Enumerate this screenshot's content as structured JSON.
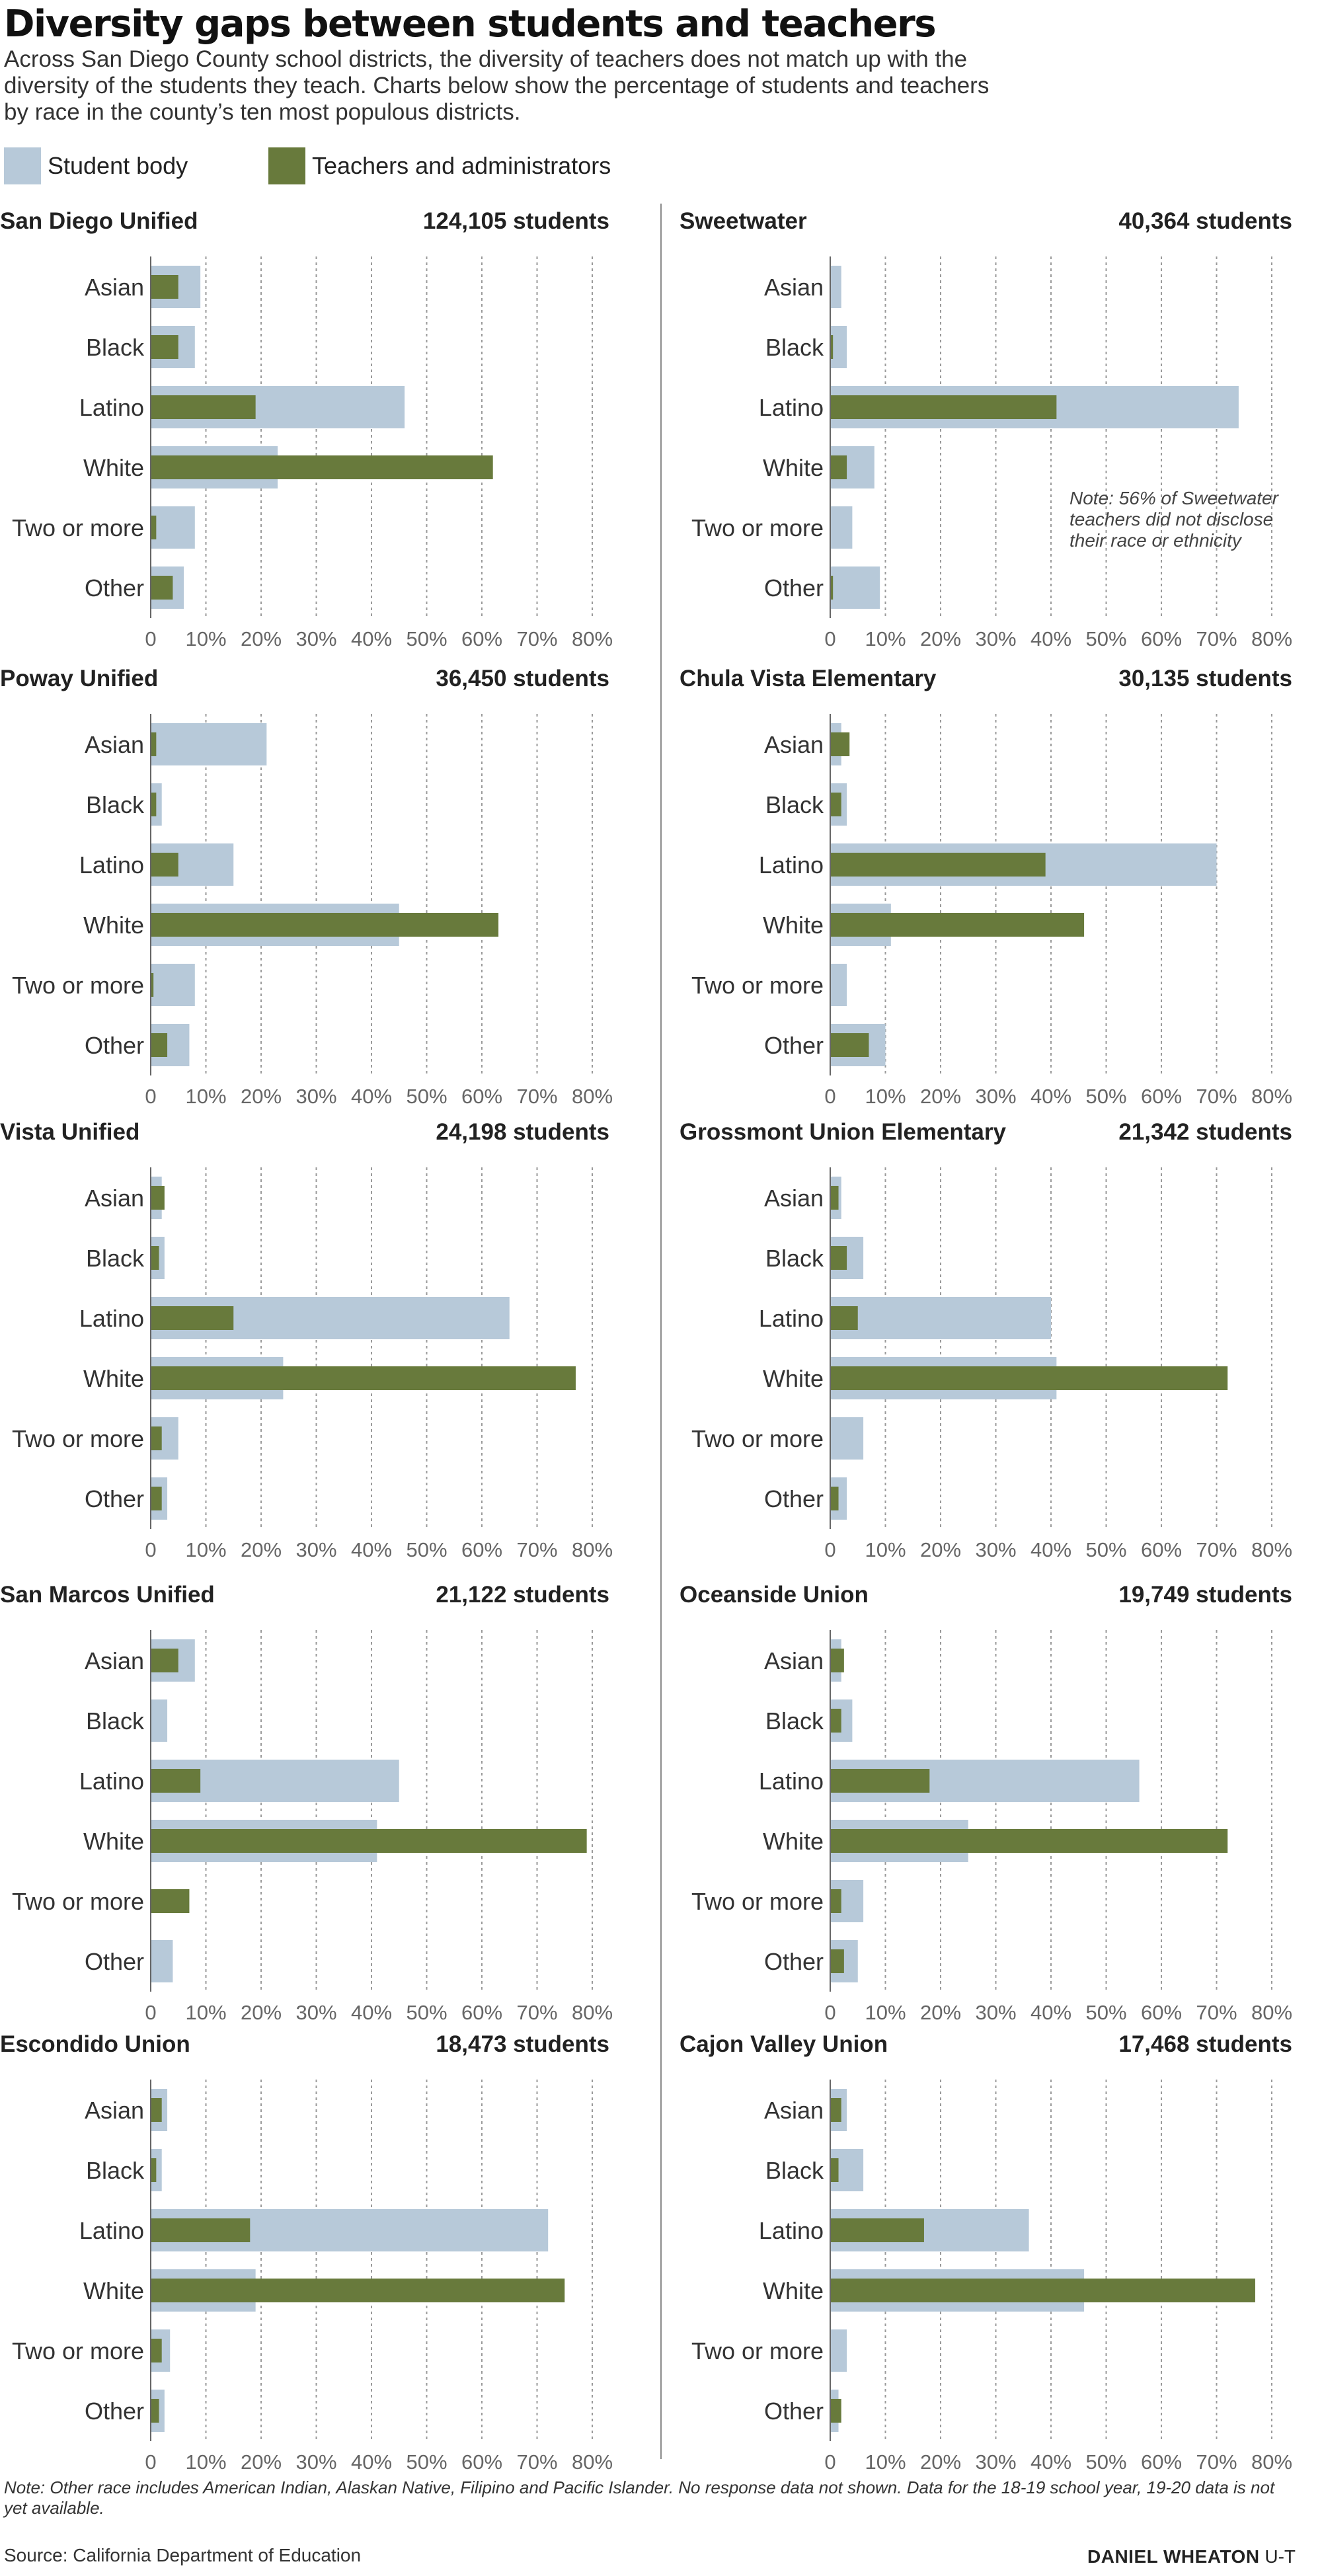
{
  "title": "Diversity gaps between students and teachers",
  "subtitle": "Across San Diego County school districts, the diversity of teachers does not match up with the diversity of the students they teach. Charts below show the percentage of students and teachers by race in the county’s ten most populous districts.",
  "legend": [
    {
      "label": "Student body",
      "color": "#b7c9d9"
    },
    {
      "label": "Teachers and administrators",
      "color": "#687a3c"
    }
  ],
  "footnote": "Note: Other race includes American Indian, Alaskan Native, Filipino and Pacific Islander. No response data not shown. Data for the 18-19 school year, 19-20 data is not yet available.",
  "source": "Source: California Department of Education",
  "credit": {
    "name": "DANIEL WHEATON",
    "org": "U-T"
  },
  "chart_data": [
    {
      "type": "bar",
      "title": "San Diego Unified",
      "enrollment": "124,105 students",
      "categories": [
        "Asian",
        "Black",
        "Latino",
        "White",
        "Two or more",
        "Other"
      ],
      "series": [
        {
          "name": "Student body",
          "values": [
            9,
            8,
            46,
            23,
            8,
            6
          ]
        },
        {
          "name": "Teachers and administrators",
          "values": [
            5,
            5,
            19,
            62,
            1,
            4
          ]
        }
      ],
      "xlim": [
        0,
        80
      ],
      "ticks": [
        "0",
        "10%",
        "20%",
        "30%",
        "40%",
        "50%",
        "60%",
        "70%",
        "80%"
      ]
    },
    {
      "type": "bar",
      "title": "Sweetwater",
      "enrollment": "40,364 students",
      "categories": [
        "Asian",
        "Black",
        "Latino",
        "White",
        "Two or more",
        "Other"
      ],
      "series": [
        {
          "name": "Student body",
          "values": [
            2,
            3,
            74,
            8,
            4,
            9
          ]
        },
        {
          "name": "Teachers and administrators",
          "values": [
            0,
            0.5,
            41,
            3,
            0,
            0.5
          ]
        }
      ],
      "xlim": [
        0,
        80
      ],
      "ticks": [
        "0",
        "10%",
        "20%",
        "30%",
        "40%",
        "50%",
        "60%",
        "70%",
        "80%"
      ],
      "note": "Note: 56% of Sweetwater teachers did not disclose their race or ethnicity"
    },
    {
      "type": "bar",
      "title": "Poway Unified",
      "enrollment": "36,450 students",
      "categories": [
        "Asian",
        "Black",
        "Latino",
        "White",
        "Two or more",
        "Other"
      ],
      "series": [
        {
          "name": "Student body",
          "values": [
            21,
            2,
            15,
            45,
            8,
            7
          ]
        },
        {
          "name": "Teachers and administrators",
          "values": [
            1,
            1,
            5,
            63,
            0.5,
            3
          ]
        }
      ],
      "xlim": [
        0,
        80
      ],
      "ticks": [
        "0",
        "10%",
        "20%",
        "30%",
        "40%",
        "50%",
        "60%",
        "70%",
        "80%"
      ]
    },
    {
      "type": "bar",
      "title": "Chula Vista Elementary",
      "enrollment": "30,135 students",
      "categories": [
        "Asian",
        "Black",
        "Latino",
        "White",
        "Two or more",
        "Other"
      ],
      "series": [
        {
          "name": "Student body",
          "values": [
            2,
            3,
            70,
            11,
            3,
            10
          ]
        },
        {
          "name": "Teachers and administrators",
          "values": [
            3.5,
            2,
            39,
            46,
            0,
            7
          ]
        }
      ],
      "xlim": [
        0,
        80
      ],
      "ticks": [
        "0",
        "10%",
        "20%",
        "30%",
        "40%",
        "50%",
        "60%",
        "70%",
        "80%"
      ]
    },
    {
      "type": "bar",
      "title": "Vista Unified",
      "enrollment": "24,198 students",
      "categories": [
        "Asian",
        "Black",
        "Latino",
        "White",
        "Two or more",
        "Other"
      ],
      "series": [
        {
          "name": "Student body",
          "values": [
            2,
            2.5,
            65,
            24,
            5,
            3
          ]
        },
        {
          "name": "Teachers and administrators",
          "values": [
            2.5,
            1.5,
            15,
            77,
            2,
            2
          ]
        }
      ],
      "xlim": [
        0,
        80
      ],
      "ticks": [
        "0",
        "10%",
        "20%",
        "30%",
        "40%",
        "50%",
        "60%",
        "70%",
        "80%"
      ]
    },
    {
      "type": "bar",
      "title": "Grossmont Union Elementary",
      "enrollment": "21,342 students",
      "categories": [
        "Asian",
        "Black",
        "Latino",
        "White",
        "Two or more",
        "Other"
      ],
      "series": [
        {
          "name": "Student body",
          "values": [
            2,
            6,
            40,
            41,
            6,
            3
          ]
        },
        {
          "name": "Teachers and administrators",
          "values": [
            1.5,
            3,
            5,
            72,
            0,
            1.5
          ]
        }
      ],
      "xlim": [
        0,
        80
      ],
      "ticks": [
        "0",
        "10%",
        "20%",
        "30%",
        "40%",
        "50%",
        "60%",
        "70%",
        "80%"
      ]
    },
    {
      "type": "bar",
      "title": "San Marcos Unified",
      "enrollment": "21,122 students",
      "categories": [
        "Asian",
        "Black",
        "Latino",
        "White",
        "Two or more",
        "Other"
      ],
      "series": [
        {
          "name": "Student body",
          "values": [
            8,
            3,
            45,
            41,
            0,
            4
          ]
        },
        {
          "name": "Teachers and administrators",
          "values": [
            5,
            0,
            9,
            79,
            7,
            0
          ]
        }
      ],
      "xlim": [
        0,
        80
      ],
      "ticks": [
        "0",
        "10%",
        "20%",
        "30%",
        "40%",
        "50%",
        "60%",
        "70%",
        "80%"
      ]
    },
    {
      "type": "bar",
      "title": "Oceanside Union",
      "enrollment": "19,749 students",
      "categories": [
        "Asian",
        "Black",
        "Latino",
        "White",
        "Two or more",
        "Other"
      ],
      "series": [
        {
          "name": "Student body",
          "values": [
            2,
            4,
            56,
            25,
            6,
            5
          ]
        },
        {
          "name": "Teachers and administrators",
          "values": [
            2.5,
            2,
            18,
            72,
            2,
            2.5
          ]
        }
      ],
      "xlim": [
        0,
        80
      ],
      "ticks": [
        "0",
        "10%",
        "20%",
        "30%",
        "40%",
        "50%",
        "60%",
        "70%",
        "80%"
      ]
    },
    {
      "type": "bar",
      "title": "Escondido Union",
      "enrollment": "18,473 students",
      "categories": [
        "Asian",
        "Black",
        "Latino",
        "White",
        "Two or more",
        "Other"
      ],
      "series": [
        {
          "name": "Student body",
          "values": [
            3,
            2,
            72,
            19,
            3.5,
            2.5
          ]
        },
        {
          "name": "Teachers and administrators",
          "values": [
            2,
            1,
            18,
            75,
            2,
            1.5
          ]
        }
      ],
      "xlim": [
        0,
        80
      ],
      "ticks": [
        "0",
        "10%",
        "20%",
        "30%",
        "40%",
        "50%",
        "60%",
        "70%",
        "80%"
      ]
    },
    {
      "type": "bar",
      "title": "Cajon Valley Union",
      "enrollment": "17,468 students",
      "categories": [
        "Asian",
        "Black",
        "Latino",
        "White",
        "Two or more",
        "Other"
      ],
      "series": [
        {
          "name": "Student body",
          "values": [
            3,
            6,
            36,
            46,
            3,
            1.5
          ]
        },
        {
          "name": "Teachers and administrators",
          "values": [
            2,
            1.5,
            17,
            77,
            0,
            2
          ]
        }
      ],
      "xlim": [
        0,
        80
      ],
      "ticks": [
        "0",
        "10%",
        "20%",
        "30%",
        "40%",
        "50%",
        "60%",
        "70%",
        "80%"
      ]
    }
  ]
}
